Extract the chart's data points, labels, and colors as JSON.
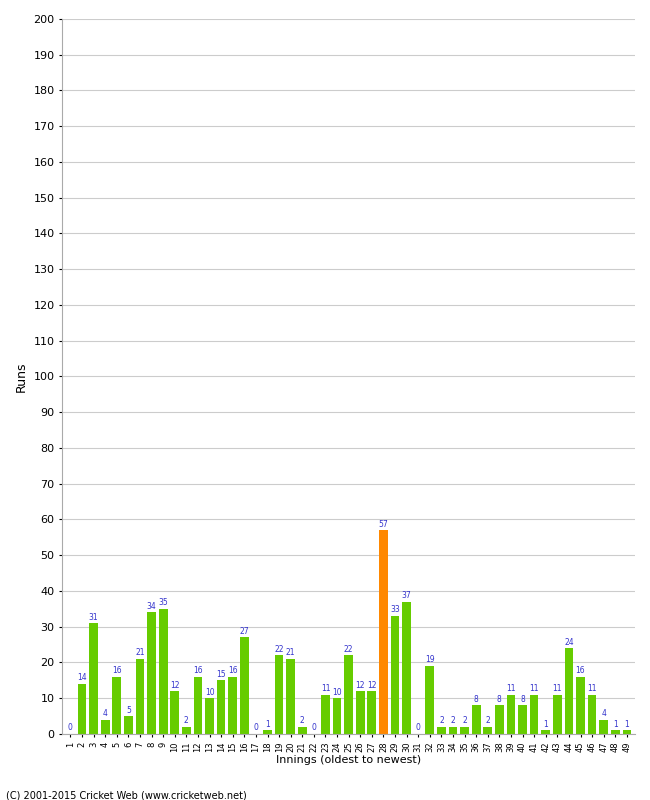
{
  "innings": [
    1,
    2,
    3,
    4,
    5,
    6,
    7,
    8,
    9,
    10,
    11,
    12,
    13,
    14,
    15,
    16,
    17,
    18,
    19,
    20,
    21,
    22,
    23,
    24,
    25,
    26,
    27,
    28,
    29,
    30,
    31,
    32,
    33,
    34,
    35,
    36,
    37,
    38,
    39,
    40,
    41,
    42,
    43,
    44,
    45,
    46,
    47,
    48,
    49
  ],
  "values": [
    0,
    14,
    31,
    4,
    16,
    5,
    21,
    34,
    35,
    12,
    2,
    16,
    10,
    15,
    16,
    27,
    0,
    1,
    22,
    21,
    2,
    0,
    11,
    10,
    22,
    12,
    12,
    57,
    33,
    37,
    0,
    19,
    2,
    2,
    2,
    8,
    2,
    8,
    11,
    8,
    11,
    1,
    11,
    24,
    16,
    11,
    4,
    1,
    1
  ],
  "orange_indices": [
    27
  ],
  "bar_color_green": "#66cc00",
  "bar_color_orange": "#ff8800",
  "ylabel": "Runs",
  "xlabel": "Innings (oldest to newest)",
  "ylim": [
    0,
    200
  ],
  "yticks": [
    0,
    10,
    20,
    30,
    40,
    50,
    60,
    70,
    80,
    90,
    100,
    110,
    120,
    130,
    140,
    150,
    160,
    170,
    180,
    190,
    200
  ],
  "footnote": "(C) 2001-2015 Cricket Web (www.cricketweb.net)",
  "label_color": "#3333cc",
  "bg_color": "#ffffff",
  "plot_bg_color": "#ffffff",
  "grid_color": "#cccccc",
  "spine_color": "#aaaaaa"
}
